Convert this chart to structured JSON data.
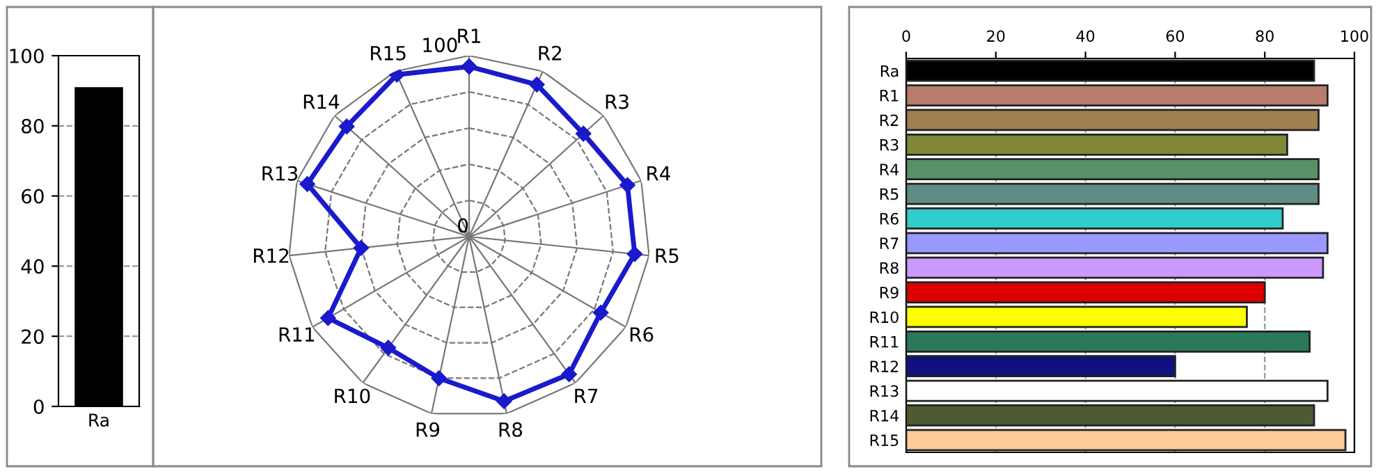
{
  "chart_data": [
    {
      "type": "bar",
      "categories": [
        "Ra"
      ],
      "values": [
        91
      ],
      "color": "#000000",
      "ylim": [
        0,
        100
      ],
      "yticks": [
        0,
        20,
        40,
        60,
        80,
        100
      ],
      "grid": "y"
    },
    {
      "type": "radar",
      "categories": [
        "R1",
        "R2",
        "R3",
        "R4",
        "R5",
        "R6",
        "R7",
        "R8",
        "R9",
        "R10",
        "R11",
        "R12",
        "R13",
        "R14",
        "R15"
      ],
      "ylim": [
        0,
        100
      ],
      "yticks": [
        0,
        100
      ],
      "grid": true,
      "marker": "diamond",
      "line_style": "solid",
      "series": [
        {
          "color": "#1a1acc",
          "values": [
            94,
            92,
            85,
            92,
            92,
            84,
            94,
            93,
            80,
            76,
            90,
            60,
            94,
            91,
            98
          ]
        }
      ]
    },
    {
      "type": "bar",
      "orientation": "horizontal",
      "categories": [
        "Ra",
        "R1",
        "R2",
        "R3",
        "R4",
        "R5",
        "R6",
        "R7",
        "R8",
        "R9",
        "R10",
        "R11",
        "R12",
        "R13",
        "R14",
        "R15"
      ],
      "values": [
        91,
        94,
        92,
        85,
        92,
        92,
        84,
        94,
        93,
        80,
        76,
        90,
        60,
        94,
        91,
        98
      ],
      "colors": [
        "#000000",
        "#b87c6c",
        "#a08050",
        "#808838",
        "#5a9068",
        "#5f8c84",
        "#33cccc",
        "#9999ff",
        "#cc99ff",
        "#dd0000",
        "#ffff00",
        "#2a7a5a",
        "#101080",
        "#ffffff",
        "#4f5a30",
        "#ffcc99"
      ],
      "xlim": [
        0,
        100
      ],
      "xticks": [
        0,
        20,
        40,
        60,
        80,
        100
      ],
      "grid": "x"
    }
  ]
}
